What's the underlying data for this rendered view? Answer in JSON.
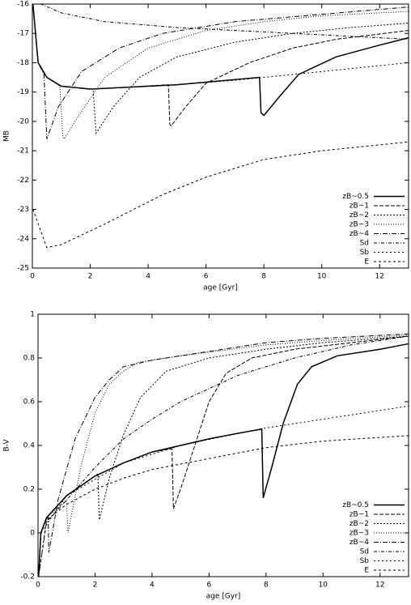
{
  "chart_data": [
    {
      "type": "line",
      "xlabel": "age [Gyr]",
      "ylabel": "MB",
      "xlim": [
        0,
        13
      ],
      "ylim": [
        -25,
        -16
      ],
      "xticks": [
        0,
        2,
        4,
        6,
        8,
        10,
        12
      ],
      "yticks": [
        -25,
        -24,
        -23,
        -22,
        -21,
        -20,
        -19,
        -18,
        -17,
        -16
      ],
      "legend": "lower right",
      "series": [
        {
          "name": "zB~0.5",
          "color": "#000000",
          "dash": "none",
          "x": [
            0.02,
            0.2,
            0.5,
            1,
            2,
            3,
            5,
            7.85,
            7.9,
            8,
            8.5,
            9.2,
            10.5,
            12,
            13
          ],
          "values": [
            -16,
            -18,
            -18.5,
            -18.8,
            -18.9,
            -18.85,
            -18.75,
            -18.5,
            -19.7,
            -19.8,
            -19.2,
            -18.4,
            -17.8,
            -17.4,
            -17.15
          ]
        },
        {
          "name": "zB~1",
          "color": "#000000",
          "dash": "5,2",
          "x": [
            0.02,
            0.2,
            0.5,
            1,
            2,
            3,
            4.7,
            4.75,
            4.8,
            5.3,
            6,
            7.5,
            9,
            10.5,
            13
          ],
          "values": [
            -16,
            -18,
            -18.5,
            -18.8,
            -18.9,
            -18.85,
            -18.75,
            -20.1,
            -20.15,
            -19.5,
            -18.7,
            -18,
            -17.5,
            -17.2,
            -16.9
          ]
        },
        {
          "name": "zB~2",
          "color": "#000000",
          "dash": "2,2",
          "x": [
            0.02,
            0.2,
            0.5,
            1,
            2.1,
            2.2,
            2.8,
            3.7,
            5,
            7,
            9,
            11,
            13
          ],
          "values": [
            -16,
            -18,
            -18.5,
            -18.8,
            -18.9,
            -20.4,
            -19.5,
            -18.5,
            -17.8,
            -17.3,
            -17,
            -16.8,
            -16.65
          ]
        },
        {
          "name": "zB~3",
          "color": "#000000",
          "dash": "1,2",
          "x": [
            0.02,
            0.2,
            0.5,
            0.95,
            1.05,
            1.1,
            1.6,
            2.5,
            4,
            6,
            8,
            10,
            13
          ],
          "values": [
            -16,
            -18,
            -18.5,
            -18.8,
            -20.5,
            -20.6,
            -19.8,
            -18.5,
            -17.5,
            -16.9,
            -16.6,
            -16.4,
            -16.25
          ]
        },
        {
          "name": "zB~4",
          "color": "#000000",
          "dash": "6,2,1,2",
          "x": [
            0.02,
            0.2,
            0.4,
            0.5,
            0.9,
            1.7,
            3,
            4.5,
            7,
            10,
            13
          ],
          "values": [
            -16,
            -18,
            -18.4,
            -20.6,
            -19.5,
            -18.3,
            -17.5,
            -17,
            -16.6,
            -16.35,
            -16.1
          ]
        },
        {
          "name": "Sd",
          "color": "#000000",
          "dash": "4,2,1,2",
          "x": [
            0.02,
            0.3,
            1,
            2.5,
            5,
            7,
            10,
            13
          ],
          "values": [
            -16,
            -16,
            -16.3,
            -16.6,
            -16.8,
            -16.9,
            -17.05,
            -17.2
          ]
        },
        {
          "name": "Sb",
          "color": "#000000",
          "dash": "2,3",
          "x": [
            0.02,
            0.2,
            0.5,
            1,
            2,
            3,
            5,
            7,
            10,
            13
          ],
          "values": [
            -16,
            -18,
            -18.5,
            -18.8,
            -18.9,
            -18.85,
            -18.75,
            -18.6,
            -18.3,
            -18
          ]
        },
        {
          "name": "E",
          "color": "#000000",
          "dash": "3,3",
          "x": [
            0.02,
            0.5,
            1,
            2.5,
            4.5,
            6,
            8,
            10,
            13
          ],
          "values": [
            -23,
            -24.3,
            -24.2,
            -23.5,
            -22.5,
            -21.9,
            -21.3,
            -21,
            -20.7
          ]
        }
      ]
    },
    {
      "type": "line",
      "xlabel": "age [Gyr]",
      "ylabel": "B-V",
      "xlim": [
        0,
        13
      ],
      "ylim": [
        -0.2,
        1
      ],
      "xticks": [
        0,
        2,
        4,
        6,
        8,
        10,
        12
      ],
      "yticks": [
        -0.2,
        0,
        0.2,
        0.4,
        0.6,
        0.8,
        1
      ],
      "legend": "lower right",
      "series": [
        {
          "name": "zB~0.5",
          "color": "#000000",
          "dash": "none",
          "x": [
            0.02,
            0.1,
            0.3,
            1,
            2,
            3,
            4,
            5,
            6,
            7,
            7.85,
            7.9,
            8.2,
            8.6,
            9.1,
            9.6,
            10.5,
            12,
            13
          ],
          "values": [
            -0.2,
            0,
            0.07,
            0.17,
            0.26,
            0.32,
            0.37,
            0.4,
            0.43,
            0.455,
            0.475,
            0.16,
            0.3,
            0.5,
            0.68,
            0.76,
            0.81,
            0.84,
            0.865
          ]
        },
        {
          "name": "zB~1",
          "color": "#000000",
          "dash": "5,2",
          "x": [
            0.02,
            0.1,
            0.3,
            1,
            2,
            3,
            4,
            4.7,
            4.75,
            5,
            5.5,
            6,
            6.6,
            7.5,
            9,
            11,
            13
          ],
          "values": [
            -0.2,
            0,
            0.07,
            0.17,
            0.26,
            0.32,
            0.37,
            0.385,
            0.11,
            0.2,
            0.4,
            0.6,
            0.73,
            0.8,
            0.84,
            0.87,
            0.9
          ]
        },
        {
          "name": "zB~2",
          "color": "#000000",
          "dash": "2,2",
          "x": [
            0.02,
            0.1,
            0.3,
            1,
            2.1,
            2.15,
            2.5,
            3,
            3.6,
            4.5,
            6,
            8,
            10,
            13
          ],
          "values": [
            -0.2,
            0,
            0.07,
            0.17,
            0.27,
            0.06,
            0.25,
            0.45,
            0.62,
            0.74,
            0.8,
            0.84,
            0.87,
            0.9
          ]
        },
        {
          "name": "zB~3",
          "color": "#000000",
          "dash": "1,2",
          "x": [
            0.02,
            0.1,
            0.3,
            1,
            1.05,
            1.5,
            2,
            2.5,
            3,
            3.5,
            5,
            8,
            10,
            13
          ],
          "values": [
            -0.2,
            0,
            0.07,
            0.15,
            0,
            0.3,
            0.55,
            0.68,
            0.74,
            0.78,
            0.81,
            0.86,
            0.88,
            0.905
          ]
        },
        {
          "name": "zB~4",
          "color": "#000000",
          "dash": "6,2,1,2",
          "x": [
            0.02,
            0.1,
            0.35,
            0.38,
            0.7,
            1.3,
            2,
            2.5,
            3,
            4,
            6,
            8,
            10,
            13
          ],
          "values": [
            -0.2,
            0,
            0.08,
            -0.09,
            0.15,
            0.43,
            0.62,
            0.7,
            0.76,
            0.79,
            0.83,
            0.87,
            0.89,
            0.91
          ]
        },
        {
          "name": "Sd",
          "color": "#000000",
          "dash": "4,2,1,2",
          "x": [
            0.02,
            0.3,
            1,
            2,
            3,
            4,
            5,
            7,
            9,
            11,
            13
          ],
          "values": [
            -0.2,
            0.05,
            0.15,
            0.3,
            0.43,
            0.52,
            0.6,
            0.72,
            0.8,
            0.86,
            0.9
          ]
        },
        {
          "name": "Sb",
          "color": "#000000",
          "dash": "2,3",
          "x": [
            0.02,
            0.1,
            1,
            3,
            5,
            7,
            8,
            10,
            13
          ],
          "values": [
            -0.2,
            0,
            0.17,
            0.32,
            0.4,
            0.455,
            0.48,
            0.52,
            0.58
          ]
        },
        {
          "name": "E",
          "color": "#000000",
          "dash": "3,3",
          "x": [
            0.02,
            0.3,
            1,
            2,
            3,
            4,
            6,
            8,
            10,
            13
          ],
          "values": [
            -0.2,
            0.06,
            0.13,
            0.2,
            0.25,
            0.29,
            0.34,
            0.39,
            0.42,
            0.445
          ]
        }
      ]
    }
  ]
}
